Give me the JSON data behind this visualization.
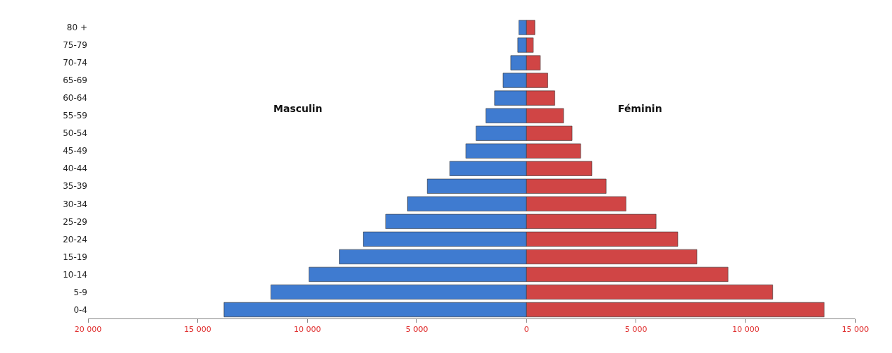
{
  "chart_data": {
    "type": "bar",
    "orientation": "horizontal",
    "categories": [
      "80 +",
      "75-79",
      "70-74",
      "65-69",
      "60-64",
      "55-59",
      "50-54",
      "45-49",
      "40-44",
      "35-39",
      "30-34",
      "25-29",
      "20-24",
      "15-19",
      "10-14",
      "5-9",
      "0-4"
    ],
    "series": [
      {
        "color": "#3f7bd0",
        "values": [
          -350,
          -400,
          -720,
          -1070,
          -1460,
          -1850,
          -2300,
          -2770,
          -3500,
          -4530,
          -5430,
          -6420,
          -7450,
          -8540,
          -9920,
          -11660,
          -13800
        ]
      },
      {
        "color": "#d04545",
        "values": [
          380,
          310,
          630,
          970,
          1290,
          1690,
          2080,
          2470,
          2980,
          3630,
          4540,
          5910,
          6900,
          7770,
          9190,
          11230,
          13580
        ]
      }
    ],
    "xlim": [
      -20000,
      15000
    ],
    "xticks": [
      {
        "value": -20000,
        "label": "20 000"
      },
      {
        "value": -15000,
        "label": "15 000"
      },
      {
        "value": -10000,
        "label": "10 000"
      },
      {
        "value": -5000,
        "label": "5 000"
      },
      0,
      {
        "value": 5000,
        "label": "5 000"
      },
      {
        "value": 10000,
        "label": "10 000"
      },
      {
        "value": 15000,
        "label": "15 000"
      }
    ],
    "annotations": [
      "Masculin",
      "Féminin"
    ],
    "stacked": true,
    "legend": false
  }
}
